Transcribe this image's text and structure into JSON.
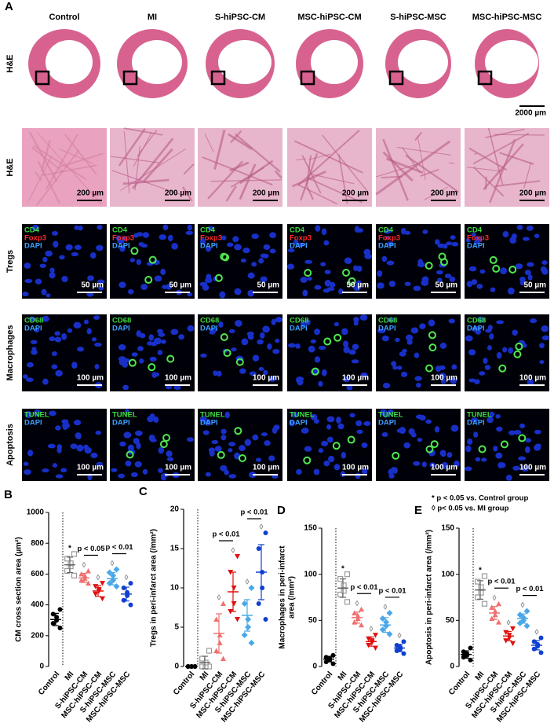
{
  "panel_a": {
    "label": "A",
    "columns": [
      "Control",
      "MI",
      "S-hiPSC-CM",
      "MSC-hiPSC-CM",
      "S-hiPSC-MSC",
      "MSC-hiPSC-MSC"
    ],
    "rows": [
      {
        "label": "H&E",
        "kind": "heart",
        "scale_bars": [
          null,
          null,
          null,
          null,
          null,
          "2000 µm"
        ]
      },
      {
        "label": "H&E",
        "kind": "he",
        "scale_bars": [
          "200 µm",
          "200 µm",
          "200 µm",
          "200 µm",
          "200 µm",
          "200 µm"
        ]
      },
      {
        "label": "Tregs",
        "kind": "fluor",
        "stains": [
          {
            "text": "CD4",
            "color": "#3ddc3d"
          },
          {
            "text": "Foxp3",
            "color": "#ff2a2a"
          },
          {
            "text": "DAPI",
            "color": "#3aa0ff"
          }
        ],
        "scale_bars": [
          "50 µm",
          "50 µm",
          "50 µm",
          "50 µm",
          "50 µm",
          "50 µm"
        ]
      },
      {
        "label": "Macrophages",
        "kind": "fluor",
        "stains": [
          {
            "text": "CD68",
            "color": "#3ddc3d"
          },
          {
            "text": "DAPI",
            "color": "#3aa0ff"
          }
        ],
        "scale_bars": [
          "100 µm",
          "100 µm",
          "100 µm",
          "100 µm",
          "100 µm",
          "100 µm"
        ]
      },
      {
        "label": "Apoptosis",
        "kind": "fluor",
        "stains": [
          {
            "text": "TUNEL",
            "color": "#3ddc3d"
          },
          {
            "text": "DAPI",
            "color": "#3aa0ff"
          }
        ],
        "scale_bars": [
          "100 µm",
          "100 µm",
          "100 µm",
          "100 µm",
          "100 µm",
          "100 µm"
        ]
      }
    ]
  },
  "chart_data": [
    {
      "type": "dot",
      "label": "B",
      "ylabel": "CM cross section area (µm²)",
      "ylim": [
        0,
        1000
      ],
      "yticks": [
        0,
        200,
        400,
        600,
        800,
        1000
      ],
      "groups": [
        {
          "name": "Control",
          "color": "#000000",
          "shape": "circle",
          "points": [
            250,
            280,
            300,
            320,
            340,
            370
          ],
          "mean": 305,
          "sd": 40
        },
        {
          "name": "MI",
          "color": "#9a9a9a",
          "shape": "open-square",
          "points": [
            590,
            620,
            650,
            670,
            700,
            730
          ],
          "mean": 660,
          "sd": 50,
          "sig": "*"
        },
        {
          "name": "S-hiPSC-CM",
          "color": "#f07070",
          "shape": "triangle",
          "points": [
            540,
            560,
            570,
            590,
            600,
            620
          ],
          "mean": 575,
          "sd": 30,
          "sig": "◊"
        },
        {
          "name": "MSC-hiPSC-CM",
          "color": "#e01010",
          "shape": "down-triangle",
          "points": [
            440,
            470,
            490,
            500,
            520,
            540
          ],
          "mean": 490,
          "sd": 35,
          "sig": "◊"
        },
        {
          "name": "S-hiPSC-MSC",
          "color": "#4aa8e8",
          "shape": "diamond",
          "points": [
            520,
            540,
            560,
            590,
            610,
            630
          ],
          "mean": 570,
          "sd": 40,
          "sig": "◊"
        },
        {
          "name": "MSC-hiPSC-MSC",
          "color": "#1040d0",
          "shape": "circle",
          "points": [
            400,
            430,
            460,
            480,
            510,
            540
          ],
          "mean": 470,
          "sd": 45,
          "sig": "◊"
        }
      ],
      "comparisons": [
        {
          "label": "p < 0.05",
          "groups": [
            2,
            3
          ]
        },
        {
          "label": "p < 0.01",
          "groups": [
            4,
            5
          ]
        }
      ]
    },
    {
      "type": "dot",
      "label": "C",
      "ylabel": "Tregs in peri-infarct area (/mm²)",
      "ylim": [
        0,
        20
      ],
      "yticks": [
        0,
        5,
        10,
        15,
        20
      ],
      "groups": [
        {
          "name": "Control",
          "color": "#000000",
          "shape": "circle",
          "points": [
            0,
            0,
            0,
            0,
            0,
            0
          ],
          "mean": 0,
          "sd": 0
        },
        {
          "name": "MI",
          "color": "#9a9a9a",
          "shape": "open-square",
          "points": [
            0,
            0,
            0,
            0.5,
            1,
            2
          ],
          "mean": 0.5,
          "sd": 0.8
        },
        {
          "name": "S-hiPSC-CM",
          "color": "#f07070",
          "shape": "triangle",
          "points": [
            1,
            2,
            3,
            4,
            6,
            8
          ],
          "mean": 4.2,
          "sd": 2.5,
          "sig": "◊"
        },
        {
          "name": "MSC-hiPSC-CM",
          "color": "#e01010",
          "shape": "down-triangle",
          "points": [
            6,
            7,
            8,
            10,
            12,
            14
          ],
          "mean": 9.5,
          "sd": 2.5,
          "sig": "◊"
        },
        {
          "name": "S-hiPSC-MSC",
          "color": "#4aa8e8",
          "shape": "diamond",
          "points": [
            3,
            4,
            5,
            6,
            8,
            10
          ],
          "mean": 6.5,
          "sd": 2,
          "sig": "◊"
        },
        {
          "name": "MSC-hiPSC-MSC",
          "color": "#1040d0",
          "shape": "circle",
          "points": [
            6,
            8,
            10,
            12,
            15,
            17
          ],
          "mean": 12,
          "sd": 3.5,
          "sig": "◊"
        }
      ],
      "comparisons": [
        {
          "label": "p < 0.01",
          "groups": [
            2,
            3
          ]
        },
        {
          "label": "p < 0.01",
          "groups": [
            4,
            5
          ]
        }
      ]
    },
    {
      "type": "dot",
      "label": "D",
      "ylabel": [
        "Macrophages in peri-infarct",
        "area (/mm²)"
      ],
      "ylim": [
        0,
        150
      ],
      "yticks": [
        0,
        50,
        100,
        150
      ],
      "groups": [
        {
          "name": "Control",
          "color": "#000000",
          "shape": "circle",
          "points": [
            3,
            5,
            7,
            9,
            10,
            12
          ],
          "mean": 8,
          "sd": 3
        },
        {
          "name": "MI",
          "color": "#9a9a9a",
          "shape": "open-square",
          "points": [
            70,
            78,
            82,
            88,
            95,
            100
          ],
          "mean": 85,
          "sd": 10,
          "sig": "*"
        },
        {
          "name": "S-hiPSC-CM",
          "color": "#f07070",
          "shape": "triangle",
          "points": [
            45,
            48,
            52,
            55,
            58,
            62
          ],
          "mean": 53,
          "sd": 6,
          "sig": "◊"
        },
        {
          "name": "MSC-hiPSC-CM",
          "color": "#e01010",
          "shape": "down-triangle",
          "points": [
            20,
            23,
            26,
            28,
            30,
            34
          ],
          "mean": 27,
          "sd": 5,
          "sig": "◊"
        },
        {
          "name": "S-hiPSC-MSC",
          "color": "#4aa8e8",
          "shape": "diamond",
          "points": [
            35,
            40,
            44,
            48,
            52,
            58
          ],
          "mean": 45,
          "sd": 8,
          "sig": "◊"
        },
        {
          "name": "MSC-hiPSC-MSC",
          "color": "#1040d0",
          "shape": "circle",
          "points": [
            14,
            17,
            19,
            21,
            23,
            27
          ],
          "mean": 20,
          "sd": 4,
          "sig": "◊"
        }
      ],
      "comparisons": [
        {
          "label": "p < 0.01",
          "groups": [
            2,
            3
          ]
        },
        {
          "label": "p < 0.01",
          "groups": [
            4,
            5
          ]
        }
      ]
    },
    {
      "type": "dot",
      "label": "E",
      "ylabel": "Apoptosis in peri-infarct  area (/mm²)",
      "ylim": [
        0,
        150
      ],
      "yticks": [
        0,
        50,
        100,
        150
      ],
      "legend": [
        "* p < 0.05 vs. Control group",
        "◊ p< 0.05 vs. MI group"
      ],
      "groups": [
        {
          "name": "Control",
          "color": "#000000",
          "shape": "circle",
          "points": [
            7,
            10,
            12,
            14,
            16,
            20
          ],
          "mean": 13,
          "sd": 4
        },
        {
          "name": "MI",
          "color": "#9a9a9a",
          "shape": "open-square",
          "points": [
            68,
            75,
            80,
            86,
            92,
            98
          ],
          "mean": 83,
          "sd": 10,
          "sig": "*"
        },
        {
          "name": "S-hiPSC-CM",
          "color": "#f07070",
          "shape": "triangle",
          "points": [
            48,
            52,
            56,
            60,
            64,
            68
          ],
          "mean": 58,
          "sd": 7,
          "sig": "◊"
        },
        {
          "name": "MSC-hiPSC-CM",
          "color": "#e01010",
          "shape": "down-triangle",
          "points": [
            25,
            28,
            31,
            34,
            37,
            41
          ],
          "mean": 33,
          "sd": 5,
          "sig": "◊"
        },
        {
          "name": "S-hiPSC-MSC",
          "color": "#4aa8e8",
          "shape": "diamond",
          "points": [
            44,
            47,
            50,
            53,
            56,
            60
          ],
          "mean": 52,
          "sd": 5,
          "sig": "◊"
        },
        {
          "name": "MSC-hiPSC-MSC",
          "color": "#1040d0",
          "shape": "circle",
          "points": [
            15,
            19,
            22,
            24,
            27,
            31
          ],
          "mean": 23,
          "sd": 5,
          "sig": "◊"
        }
      ],
      "comparisons": [
        {
          "label": "p < 0.01",
          "groups": [
            2,
            3
          ]
        },
        {
          "label": "p < 0.01",
          "groups": [
            4,
            5
          ]
        }
      ]
    }
  ]
}
